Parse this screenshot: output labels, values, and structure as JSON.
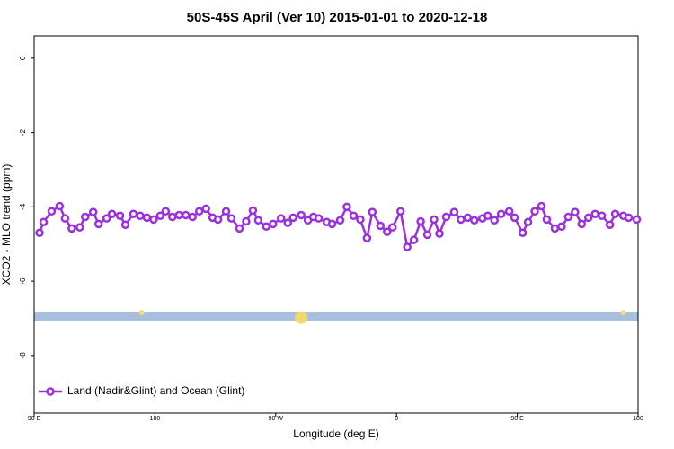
{
  "chart_data": {
    "type": "line",
    "title": "50S-45S April (Ver 10)   2015-01-01 to 2020-12-18",
    "x_label": "Longitude (deg E)",
    "y_label": "XCO2 - MLO trend (ppm)",
    "xlim": [
      90,
      540
    ],
    "ylim": [
      -9.55,
      0.6
    ],
    "xticks": [
      {
        "value": 90,
        "label": "90 E"
      },
      180,
      {
        "value": 270,
        "label": "90 W"
      },
      {
        "value": 360,
        "label": "0"
      },
      {
        "value": 450,
        "label": "90 E"
      },
      {
        "value": 540,
        "label": "180"
      }
    ],
    "yticks": [
      0,
      -2,
      -4,
      -6,
      -8
    ],
    "legend": "bottom-left",
    "series": [
      {
        "name": "Land (Nadir&Glint) and Ocean (Glint)",
        "color": "#9b30e0",
        "x": [
          94,
          97,
          103,
          109,
          113,
          118,
          124,
          128,
          134,
          138,
          144,
          148,
          154,
          158,
          164,
          169,
          174,
          179,
          184,
          188,
          193,
          198,
          203,
          208,
          213,
          218,
          223,
          227,
          233,
          237,
          243,
          248,
          253,
          257,
          263,
          268,
          274,
          279,
          283,
          289,
          294,
          298,
          302,
          308,
          312,
          318,
          323,
          328,
          333,
          338,
          342,
          348,
          353,
          357,
          363,
          368,
          373,
          378,
          383,
          388,
          392,
          397,
          403,
          408,
          413,
          418,
          424,
          428,
          433,
          438,
          444,
          448,
          454,
          458,
          463,
          468,
          472,
          478,
          483,
          488,
          493,
          498,
          503,
          508,
          513,
          519,
          523,
          529,
          533,
          539
        ],
        "values": [
          -4.7,
          -4.41,
          -4.12,
          -3.98,
          -4.31,
          -4.58,
          -4.55,
          -4.27,
          -4.14,
          -4.46,
          -4.31,
          -4.19,
          -4.24,
          -4.48,
          -4.19,
          -4.24,
          -4.29,
          -4.34,
          -4.24,
          -4.12,
          -4.27,
          -4.22,
          -4.22,
          -4.27,
          -4.12,
          -4.05,
          -4.29,
          -4.34,
          -4.12,
          -4.31,
          -4.58,
          -4.39,
          -4.098,
          -4.36,
          -4.53,
          -4.46,
          -4.31,
          -4.43,
          -4.29,
          -4.22,
          -4.36,
          -4.27,
          -4.31,
          -4.41,
          -4.46,
          -4.36,
          -4.0,
          -4.24,
          -4.34,
          -4.84,
          -4.14,
          -4.51,
          -4.67,
          -4.55,
          -4.12,
          -5.08,
          -4.89,
          -4.39,
          -4.75,
          -4.34,
          -4.72,
          -4.27,
          -4.14,
          -4.34,
          -4.29,
          -4.36,
          -4.31,
          -4.24,
          -4.36,
          -4.19,
          -4.12,
          -4.29,
          -4.7,
          -4.41,
          -4.12,
          -3.98,
          -4.34,
          -4.58,
          -4.53,
          -4.27,
          -4.14,
          -4.46,
          -4.29,
          -4.19,
          -4.24,
          -4.48,
          -4.19,
          -4.24,
          -4.29,
          -4.34
        ]
      }
    ],
    "surface_band": {
      "ymin": -7.08,
      "ymax": -6.82,
      "color": "#a7bedc"
    },
    "markers": {
      "color": "#f5d76e",
      "x": [
        170,
        289,
        529
      ],
      "y": [
        -6.85,
        -6.98,
        -6.85
      ],
      "size": [
        3,
        7,
        3
      ]
    }
  }
}
